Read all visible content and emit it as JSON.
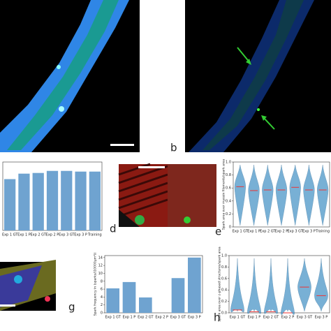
{
  "panel_labels": [
    "b",
    "d",
    "e",
    "g",
    "h"
  ],
  "chart_data": [
    {
      "type": "bar",
      "categories": [
        "Exp 1 GT",
        "Exp 1 P",
        "Exp 2 GT",
        "Exp 2 P",
        "Exp 3 GT",
        "Exp 3 P",
        "Training"
      ],
      "values": [
        0.75,
        0.83,
        0.84,
        0.87,
        0.87,
        0.86,
        0.86
      ],
      "color": "#6fa3d0",
      "ylim": [
        0,
        1
      ]
    },
    {
      "type": "violin",
      "y_label": "Spark area over myosin filaments/spark area",
      "categories": [
        "Exp 1 GT",
        "Exp 1 P",
        "Exp 2 GT",
        "Exp 2 P",
        "Exp 3 GT",
        "Exp 3 P",
        "Training"
      ],
      "values": [
        0.62,
        0.56,
        0.57,
        0.57,
        0.61,
        0.57,
        0.57
      ],
      "color": "#3f8fc4",
      "ylim": [
        0,
        1
      ],
      "yticks": [
        0,
        0.2,
        0.4,
        0.6,
        0.8,
        {
          "value": 1,
          "label": "1.0"
        }
      ]
    },
    {
      "type": "bar",
      "y_label": "Spark frequency in (sparks/(10000µm²))",
      "categories": [
        "Exp 1 GT",
        "Exp 1 P",
        "Exp 2 GT",
        "Exp 2 P",
        "Exp 3 GT",
        "Exp 3 P"
      ],
      "values": [
        6.2,
        7.8,
        3.9,
        0,
        8.8,
        14
      ],
      "color": "#6fa3d0",
      "ylim": [
        0,
        14.5
      ],
      "yticks": [
        0,
        2,
        4,
        6,
        8,
        10,
        12,
        14
      ]
    },
    {
      "type": "violin",
      "y_label": "Spark area over z-phased structures/spark area",
      "categories": [
        "Exp 1 GT",
        "Exp 1 P",
        "Exp 2 GT",
        "Exp 2 P",
        "Exp 3 GT",
        "Exp 3 P"
      ],
      "values": [
        0.05,
        0.02,
        0.02,
        0,
        0.45,
        0.3
      ],
      "color": "#3f8fc4",
      "ylim": [
        0,
        1
      ],
      "yticks": [
        {
          "value": 0,
          "label": "0.0"
        },
        0.2,
        0.4,
        0.6,
        0.8,
        {
          "value": 1,
          "label": "1.0"
        }
      ]
    }
  ]
}
